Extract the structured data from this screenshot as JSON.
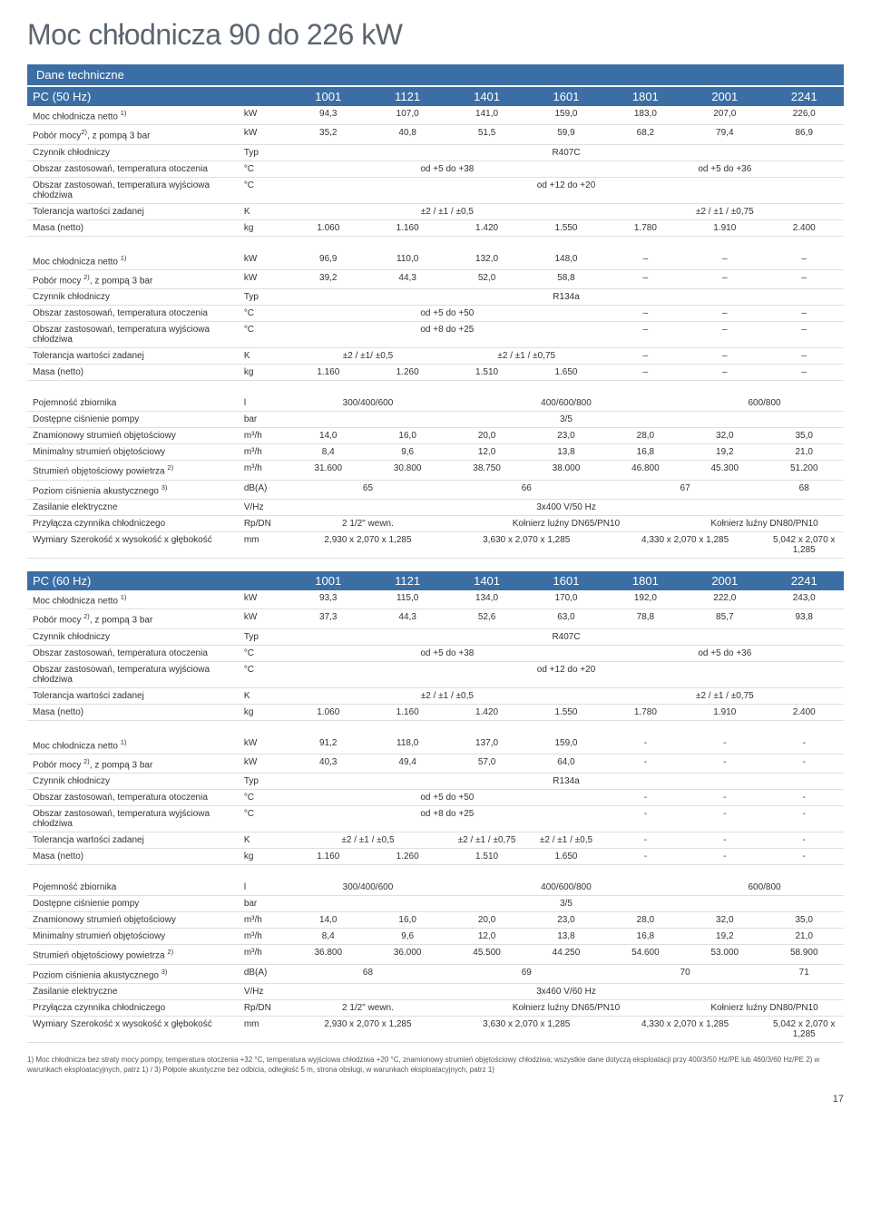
{
  "page_title": "Moc chłodnicza 90 do 226 kW",
  "section_label": "Dane techniczne",
  "page_number": "17",
  "colors": {
    "header_bg": "#3a6ea5",
    "header_fg": "#ffffff",
    "title_color": "#5a6570",
    "border": "#dfdfdf",
    "bg": "#ffffff"
  },
  "table50": {
    "title": "PC (50 Hz)",
    "models": [
      "1001",
      "1121",
      "1401",
      "1601",
      "1801",
      "2001",
      "2241"
    ],
    "sections": [
      {
        "rows": [
          {
            "label": "Moc chłodnicza netto ",
            "sup": "1)",
            "unit": "kW",
            "values": [
              "94,3",
              "107,0",
              "141,0",
              "159,0",
              "183,0",
              "207,0",
              "226,0"
            ]
          },
          {
            "label": "Pobór mocy",
            "sup": "2)",
            "post": ", z pompą 3 bar",
            "unit": "kW",
            "values": [
              "35,2",
              "40,8",
              "51,5",
              "59,9",
              "68,2",
              "79,4",
              "86,9"
            ]
          },
          {
            "label": "Czynnik chłodniczy",
            "unit": "Typ",
            "span": {
              "cols": 7,
              "text": "R407C"
            }
          },
          {
            "label": "Obszar zastosowań, temperatura otoczenia",
            "unit": "°C",
            "groups": [
              {
                "cols": 4,
                "text": "od +5 do +38"
              },
              {
                "cols": 3,
                "text": "od +5 do +36"
              }
            ]
          },
          {
            "label": "Obszar zastosowań, temperatura wyjściowa chłodziwa",
            "unit": "°C",
            "span": {
              "cols": 7,
              "text": "od +12 do +20"
            }
          },
          {
            "label": "Tolerancja wartości zadanej",
            "unit": "K",
            "groups": [
              {
                "cols": 4,
                "text": "±2 / ±1 / ±0,5"
              },
              {
                "cols": 3,
                "text": "±2 / ±1 / ±0,75"
              }
            ]
          },
          {
            "label": "Masa (netto)",
            "unit": "kg",
            "values": [
              "1.060",
              "1.160",
              "1.420",
              "1.550",
              "1.780",
              "1.910",
              "2.400"
            ]
          }
        ]
      },
      {
        "rows": [
          {
            "label": "Moc chłodnicza netto ",
            "sup": "1)",
            "unit": "kW",
            "values": [
              "96,9",
              "110,0",
              "132,0",
              "148,0",
              "–",
              "–",
              "–"
            ]
          },
          {
            "label": "Pobór mocy ",
            "sup": "2)",
            "post": ", z pompą 3 bar",
            "unit": "kW",
            "values": [
              "39,2",
              "44,3",
              "52,0",
              "58,8",
              "–",
              "–",
              "–"
            ]
          },
          {
            "label": "Czynnik chłodniczy",
            "unit": "Typ",
            "span": {
              "cols": 7,
              "text": "R134a"
            }
          },
          {
            "label": "Obszar zastosowań, temperatura otoczenia",
            "unit": "°C",
            "groups": [
              {
                "cols": 4,
                "text": "od +5 do +50"
              },
              {
                "cols": 1,
                "text": "–"
              },
              {
                "cols": 1,
                "text": "–"
              },
              {
                "cols": 1,
                "text": "–"
              }
            ]
          },
          {
            "label": "Obszar zastosowań, temperatura wyjściowa chłodziwa",
            "unit": "°C",
            "groups": [
              {
                "cols": 4,
                "text": "od +8 do +25"
              },
              {
                "cols": 1,
                "text": "–"
              },
              {
                "cols": 1,
                "text": "–"
              },
              {
                "cols": 1,
                "text": "–"
              }
            ]
          },
          {
            "label": "Tolerancja wartości zadanej",
            "unit": "K",
            "groups": [
              {
                "cols": 2,
                "text": "±2 / ±1/ ±0,5"
              },
              {
                "cols": 2,
                "text": "±2 / ±1 / ±0,75"
              },
              {
                "cols": 1,
                "text": "–"
              },
              {
                "cols": 1,
                "text": "–"
              },
              {
                "cols": 1,
                "text": "–"
              }
            ]
          },
          {
            "label": "Masa (netto)",
            "unit": "kg",
            "values": [
              "1.160",
              "1.260",
              "1.510",
              "1.650",
              "–",
              "–",
              "–"
            ]
          }
        ]
      },
      {
        "rows": [
          {
            "label": "Pojemność zbiornika",
            "unit": "l",
            "groups": [
              {
                "cols": 2,
                "text": "300/400/600"
              },
              {
                "cols": 3,
                "text": "400/600/800"
              },
              {
                "cols": 2,
                "text": "600/800"
              }
            ]
          },
          {
            "label": "Dostępne ciśnienie pompy",
            "unit": "bar",
            "span": {
              "cols": 7,
              "text": "3/5"
            }
          },
          {
            "label": "Znamionowy strumień objętościowy",
            "unit": "m³/h",
            "values": [
              "14,0",
              "16,0",
              "20,0",
              "23,0",
              "28,0",
              "32,0",
              "35,0"
            ]
          },
          {
            "label": "Minimalny strumień objętościowy",
            "unit": "m³/h",
            "values": [
              "8,4",
              "9,6",
              "12,0",
              "13,8",
              "16,8",
              "19,2",
              "21,0"
            ]
          },
          {
            "label": "Strumień objętościowy powietrza ",
            "sup": "2)",
            "unit": "m³/h",
            "values": [
              "31.600",
              "30.800",
              "38.750",
              "38.000",
              "46.800",
              "45.300",
              "51.200"
            ]
          },
          {
            "label": "Poziom ciśnienia akustycznego ",
            "sup": "3)",
            "unit": "dB(A)",
            "groups": [
              {
                "cols": 2,
                "text": "65"
              },
              {
                "cols": 2,
                "text": "66"
              },
              {
                "cols": 2,
                "text": "67"
              },
              {
                "cols": 1,
                "text": "68"
              }
            ]
          },
          {
            "label": "Zasilanie elektryczne",
            "unit": "V/Hz",
            "span": {
              "cols": 7,
              "text": "3x400 V/50 Hz"
            }
          },
          {
            "label": "Przyłącza czynnika chłodniczego",
            "unit": "Rp/DN",
            "groups": [
              {
                "cols": 2,
                "text": "2 1/2\" wewn."
              },
              {
                "cols": 3,
                "text": "Kołnierz luźny DN65/PN10"
              },
              {
                "cols": 2,
                "text": "Kołnierz luźny DN80/PN10"
              }
            ]
          },
          {
            "label": "Wymiary Szerokość x wysokość x głębokość",
            "unit": "mm",
            "groups": [
              {
                "cols": 2,
                "text": "2,930 x 2,070 x 1,285"
              },
              {
                "cols": 2,
                "text": "3,630 x 2,070 x 1,285"
              },
              {
                "cols": 2,
                "text": "4,330 x 2,070 x 1,285"
              },
              {
                "cols": 1,
                "text": "5,042 x 2,070 x 1,285"
              }
            ]
          }
        ]
      }
    ]
  },
  "table60": {
    "title": "PC (60 Hz)",
    "models": [
      "1001",
      "1121",
      "1401",
      "1601",
      "1801",
      "2001",
      "2241"
    ],
    "sections": [
      {
        "rows": [
          {
            "label": "Moc chłodnicza netto ",
            "sup": "1)",
            "unit": "kW",
            "values": [
              "93,3",
              "115,0",
              "134,0",
              "170,0",
              "192,0",
              "222,0",
              "243,0"
            ]
          },
          {
            "label": "Pobór mocy ",
            "sup": "2)",
            "post": ", z pompą 3 bar",
            "unit": "kW",
            "values": [
              "37,3",
              "44,3",
              "52,6",
              "63,0",
              "78,8",
              "85,7",
              "93,8"
            ]
          },
          {
            "label": "Czynnik chłodniczy",
            "unit": "Typ",
            "span": {
              "cols": 7,
              "text": "R407C"
            }
          },
          {
            "label": "Obszar zastosowań, temperatura otoczenia",
            "unit": "°C",
            "groups": [
              {
                "cols": 4,
                "text": "od +5 do +38"
              },
              {
                "cols": 3,
                "text": "od +5 do +36"
              }
            ]
          },
          {
            "label": "Obszar zastosowań, temperatura wyjściowa chłodziwa",
            "unit": "°C",
            "span": {
              "cols": 7,
              "text": "od +12 do +20"
            }
          },
          {
            "label": "Tolerancja wartości zadanej",
            "unit": "K",
            "groups": [
              {
                "cols": 4,
                "text": "±2 / ±1 / ±0,5"
              },
              {
                "cols": 3,
                "text": "±2 / ±1 / ±0,75"
              }
            ]
          },
          {
            "label": "Masa (netto)",
            "unit": "kg",
            "values": [
              "1.060",
              "1.160",
              "1.420",
              "1.550",
              "1.780",
              "1.910",
              "2.400"
            ]
          }
        ]
      },
      {
        "rows": [
          {
            "label": "Moc chłodnicza netto ",
            "sup": "1)",
            "unit": "kW",
            "values": [
              "91,2",
              "118,0",
              "137,0",
              "159,0",
              "-",
              "-",
              "-"
            ]
          },
          {
            "label": "Pobór mocy ",
            "sup": "2)",
            "post": ", z pompą 3 bar",
            "unit": "kW",
            "values": [
              "40,3",
              "49,4",
              "57,0",
              "64,0",
              "-",
              "-",
              "-"
            ]
          },
          {
            "label": "Czynnik chłodniczy",
            "unit": "Typ",
            "span": {
              "cols": 7,
              "text": "R134a"
            }
          },
          {
            "label": "Obszar zastosowań, temperatura otoczenia",
            "unit": "°C",
            "groups": [
              {
                "cols": 4,
                "text": "od +5 do +50"
              },
              {
                "cols": 1,
                "text": "-"
              },
              {
                "cols": 1,
                "text": "-"
              },
              {
                "cols": 1,
                "text": "-"
              }
            ]
          },
          {
            "label": "Obszar zastosowań, temperatura wyjściowa chłodziwa",
            "unit": "°C",
            "groups": [
              {
                "cols": 4,
                "text": "od +8 do +25"
              },
              {
                "cols": 1,
                "text": "-"
              },
              {
                "cols": 1,
                "text": "-"
              },
              {
                "cols": 1,
                "text": "-"
              }
            ]
          },
          {
            "label": "Tolerancja wartości zadanej",
            "unit": "K",
            "groups": [
              {
                "cols": 2,
                "text": "±2 / ±1 / ±0,5"
              },
              {
                "cols": 1,
                "text": "±2 / ±1 / ±0,75"
              },
              {
                "cols": 1,
                "text": "±2 / ±1 / ±0,5"
              },
              {
                "cols": 1,
                "text": "-"
              },
              {
                "cols": 1,
                "text": "-"
              },
              {
                "cols": 1,
                "text": "-"
              }
            ]
          },
          {
            "label": "Masa (netto)",
            "unit": "kg",
            "values": [
              "1.160",
              "1.260",
              "1.510",
              "1.650",
              "-",
              "-",
              "-"
            ]
          }
        ]
      },
      {
        "rows": [
          {
            "label": "Pojemność zbiornika",
            "unit": "l",
            "groups": [
              {
                "cols": 2,
                "text": "300/400/600"
              },
              {
                "cols": 3,
                "text": "400/600/800"
              },
              {
                "cols": 2,
                "text": "600/800"
              }
            ]
          },
          {
            "label": "Dostępne ciśnienie pompy",
            "unit": "bar",
            "span": {
              "cols": 7,
              "text": "3/5"
            }
          },
          {
            "label": "Znamionowy strumień objętościowy",
            "unit": "m³/h",
            "values": [
              "14,0",
              "16,0",
              "20,0",
              "23,0",
              "28,0",
              "32,0",
              "35,0"
            ]
          },
          {
            "label": "Minimalny strumień objętościowy",
            "unit": "m³/h",
            "values": [
              "8,4",
              "9,6",
              "12,0",
              "13,8",
              "16,8",
              "19,2",
              "21,0"
            ]
          },
          {
            "label": "Strumień objętościowy powietrza ",
            "sup": "2)",
            "unit": "m³/h",
            "values": [
              "36.800",
              "36.000",
              "45.500",
              "44.250",
              "54.600",
              "53.000",
              "58.900"
            ]
          },
          {
            "label": "Poziom ciśnienia akustycznego ",
            "sup": "3)",
            "unit": "dB(A)",
            "groups": [
              {
                "cols": 2,
                "text": "68"
              },
              {
                "cols": 2,
                "text": "69"
              },
              {
                "cols": 2,
                "text": "70"
              },
              {
                "cols": 1,
                "text": "71"
              }
            ]
          },
          {
            "label": "Zasilanie elektryczne",
            "unit": "V/Hz",
            "span": {
              "cols": 7,
              "text": "3x460 V/60 Hz"
            }
          },
          {
            "label": "Przyłącza czynnika chłodniczego",
            "unit": "Rp/DN",
            "groups": [
              {
                "cols": 2,
                "text": "2 1/2\" wewn."
              },
              {
                "cols": 3,
                "text": "Kołnierz luźny DN65/PN10"
              },
              {
                "cols": 2,
                "text": "Kołnierz luźny DN80/PN10"
              }
            ]
          },
          {
            "label": "Wymiary\nSzerokość x wysokość x głębokość",
            "unit": "mm",
            "groups": [
              {
                "cols": 2,
                "text": "2,930 x 2,070 x 1,285"
              },
              {
                "cols": 2,
                "text": "3,630 x 2,070 x 1,285"
              },
              {
                "cols": 2,
                "text": "4,330 x 2,070 x 1,285"
              },
              {
                "cols": 1,
                "text": "5,042 x 2,070 x 1,285"
              }
            ]
          }
        ]
      }
    ]
  },
  "footnote": "1)  Moc chłodnicza bez straty mocy pompy, temperatura otoczenia +32 °C, temperatura wyjściowa chłodziwa +20 °C, znamionowy strumień objętościowy chłodziwa; wszystkie dane dotyczą eksploatacji przy 400/3/50 Hz/PE lub 460/3/60 Hz/PE   2) w warunkach eksploatacyjnych, patrz 1) / 3)  Półpole akustyczne bez odbicia, odległość 5 m, strona obsługi, w warunkach eksploatacyjnych, patrz 1)"
}
